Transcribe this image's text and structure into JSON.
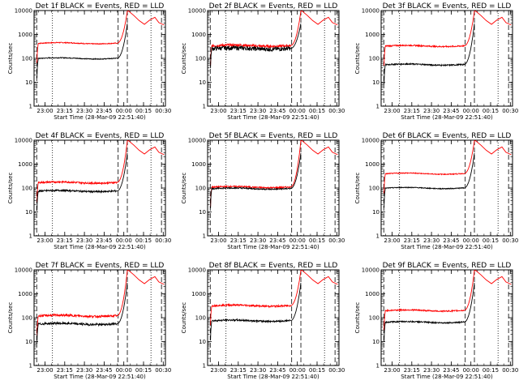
{
  "chart_data": {
    "type": "line",
    "x_axis": {
      "label": "Start Time (28-Mar-09 22:51:40)",
      "ticks": [
        "23:00",
        "23:15",
        "23:30",
        "23:45",
        "00:00",
        "00:15",
        "00:30"
      ],
      "tick_minutes": [
        8.33,
        23.33,
        38.33,
        53.33,
        68.33,
        83.33,
        98.33
      ],
      "range_minutes": [
        0,
        100
      ]
    },
    "y_axis": {
      "label": "Counts/sec",
      "scale": "log",
      "ticks": [
        "1",
        "10",
        "100",
        "1000",
        "10000"
      ],
      "range": [
        1,
        10000
      ]
    },
    "markers": {
      "dotted_minutes": [
        14,
        89
      ],
      "dashed_minutes": [
        2,
        64,
        71,
        97
      ]
    },
    "series_colors": {
      "events": "#000000",
      "lld": "#ff0000"
    },
    "panels": [
      {
        "title": "Det 1f BLACK = Events, RED = LLD",
        "events_level": 100,
        "lld_level": 430,
        "noise": 0.02,
        "lld_peak": 9500
      },
      {
        "title": "Det 2f BLACK = Events, RED = LLD",
        "events_level": 260,
        "lld_level": 340,
        "noise": 0.1,
        "lld_peak": 9500
      },
      {
        "title": "Det 3f BLACK = Events, RED = LLD",
        "events_level": 55,
        "lld_level": 330,
        "noise": 0.03,
        "lld_peak": 9500
      },
      {
        "title": "Det 4f BLACK = Events, RED = LLD",
        "events_level": 75,
        "lld_level": 170,
        "noise": 0.04,
        "lld_peak": 9500
      },
      {
        "title": "Det 5f BLACK = Events, RED = LLD",
        "events_level": 95,
        "lld_level": 110,
        "noise": 0.03,
        "lld_peak": 9500
      },
      {
        "title": "Det 6f BLACK = Events, RED = LLD",
        "events_level": 100,
        "lld_level": 400,
        "noise": 0.02,
        "lld_peak": 9500
      },
      {
        "title": "Det 7f BLACK = Events, RED = LLD",
        "events_level": 55,
        "lld_level": 120,
        "noise": 0.05,
        "lld_peak": 9500
      },
      {
        "title": "Det 8f BLACK = Events, RED = LLD",
        "events_level": 75,
        "lld_level": 320,
        "noise": 0.04,
        "lld_peak": 9500
      },
      {
        "title": "Det 9f BLACK = Events, RED = LLD",
        "events_level": 65,
        "lld_level": 200,
        "noise": 0.03,
        "lld_peak": 9500
      }
    ]
  }
}
